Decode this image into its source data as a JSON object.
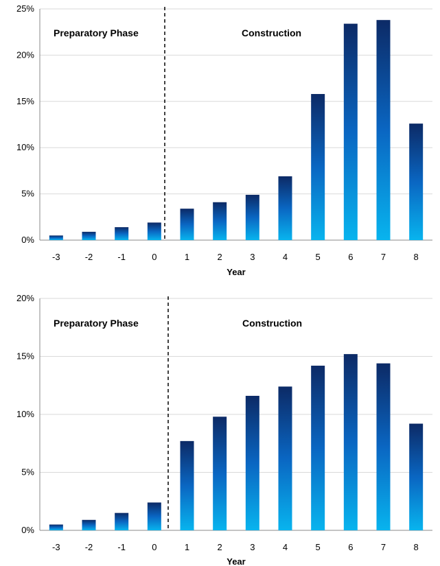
{
  "chart_data": [
    {
      "type": "bar",
      "categories": [
        "-3",
        "-2",
        "-1",
        "0",
        "1",
        "2",
        "3",
        "4",
        "5",
        "6",
        "7",
        "8"
      ],
      "values": [
        0.5,
        0.9,
        1.4,
        1.9,
        3.4,
        4.1,
        4.9,
        6.9,
        15.8,
        23.4,
        23.8,
        12.6
      ],
      "ylim": [
        0,
        25
      ],
      "yticks": [
        0,
        5,
        10,
        15,
        20,
        25
      ],
      "ytick_labels": [
        "0%",
        "5%",
        "10%",
        "15%",
        "20%",
        "25%"
      ],
      "xlabel": "Year",
      "ylabel": "",
      "title": "",
      "grid": true,
      "annotations": [
        "Preparatory Phase",
        "Construction"
      ],
      "phase_divider_after_category": "0"
    },
    {
      "type": "bar",
      "categories": [
        "-3",
        "-2",
        "-1",
        "0",
        "1",
        "2",
        "3",
        "4",
        "5",
        "6",
        "7",
        "8"
      ],
      "values": [
        0.5,
        0.9,
        1.5,
        2.4,
        7.7,
        9.8,
        11.6,
        12.4,
        14.2,
        15.2,
        14.4,
        9.2
      ],
      "ylim": [
        0,
        20
      ],
      "yticks": [
        0,
        5,
        10,
        15,
        20
      ],
      "ytick_labels": [
        "0%",
        "5%",
        "10%",
        "15%",
        "20%"
      ],
      "xlabel": "Year",
      "ylabel": "",
      "title": "",
      "grid": true,
      "annotations": [
        "Preparatory Phase",
        "Construction"
      ],
      "phase_divider_after_category": "0"
    }
  ],
  "colors": {
    "bar_top": "#0c2a66",
    "bar_mid": "#0a66c2",
    "bar_bottom": "#08b4ee"
  }
}
